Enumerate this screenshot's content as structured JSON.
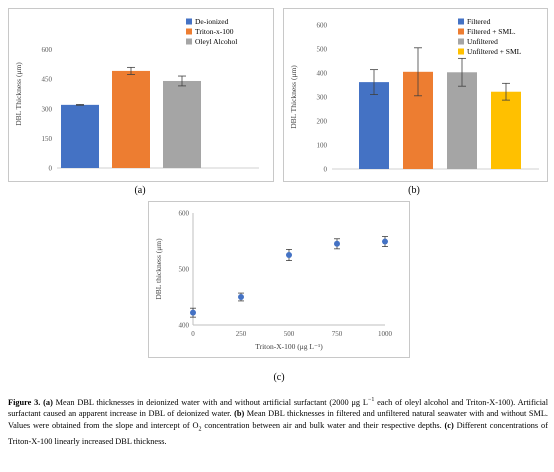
{
  "chart_data": [
    {
      "id": "a",
      "type": "bar",
      "categories": [
        "De-ionized",
        "Triton-x-100",
        "Oleyl Alcohol"
      ],
      "values": [
        320,
        492,
        441
      ],
      "errors": [
        2,
        18,
        25
      ],
      "colors": [
        "#4472C4",
        "#ED7D31",
        "#A5A5A5"
      ],
      "ylabel": "DBL Thickness (μm)",
      "ylim": [
        0,
        750
      ],
      "yticks": [
        0,
        150,
        300,
        450,
        600
      ],
      "legend_position": "top-right",
      "grid": false
    },
    {
      "id": "b",
      "type": "bar",
      "categories": [
        "Filtered",
        "Filtered + SML.",
        "Unfiltered",
        "Unfiltered + SML"
      ],
      "values": [
        362,
        405,
        403,
        322
      ],
      "errors": [
        52,
        100,
        58,
        35
      ],
      "colors": [
        "#4472C4",
        "#ED7D31",
        "#A5A5A5",
        "#FFC000"
      ],
      "ylabel": "DBL Thickness (μm)",
      "ylim": [
        0,
        600
      ],
      "yticks": [
        0,
        100,
        200,
        300,
        400,
        500,
        600
      ],
      "legend_position": "top-right",
      "grid": false
    },
    {
      "id": "c",
      "type": "scatter",
      "x": [
        0,
        250,
        500,
        750,
        1000
      ],
      "y": [
        422,
        450,
        525,
        545,
        549
      ],
      "errors": [
        8,
        7,
        10,
        9,
        9
      ],
      "color": "#4472C4",
      "xlabel": "Triton-X-100 (μg L⁻¹)",
      "ylabel": "DBL thickness (μm)",
      "xlim": [
        0,
        1000
      ],
      "ylim": [
        400,
        600
      ],
      "xticks": [
        0,
        250,
        500,
        750,
        1000
      ],
      "yticks": [
        400,
        500,
        600
      ],
      "grid": false
    }
  ],
  "panel_labels": {
    "a": "(a)",
    "b": "(b)",
    "c": "(c)"
  },
  "caption": {
    "lead": "Figure 3.",
    "a_tag": "(a)",
    "p1": " Mean DBL thicknesses in deionized water with and without artificial surfactant (2000 μg L",
    "p1_sup": "−1",
    "p2": " each of oleyl alcohol and Triton-X-100). Artificial surfactant caused an apparent increase in DBL of deionized water. ",
    "b_tag": "(b)",
    "p3": " Mean DBL thicknesses in filtered and unfiltered natural seawater with and without SML. Values were obtained from the slope and intercept of O",
    "p3_sub": "2",
    "p4": " concentration between air and bulk water and their respective depths. ",
    "c_tag": "(c)",
    "p5": " Different concentrations of Triton-X-100 linearly increased DBL thickness."
  }
}
